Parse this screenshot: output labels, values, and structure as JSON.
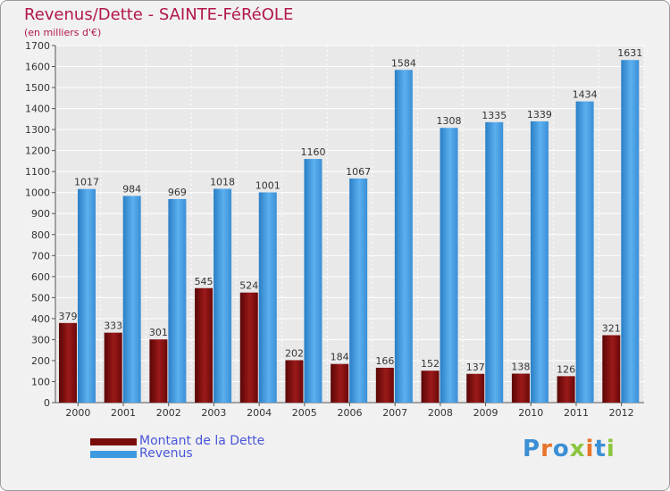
{
  "title": "Revenus/Dette - SAINTE-FéRéOLE",
  "subtitle": "(en milliers d'€)",
  "logo": {
    "text": "Proxiti",
    "colors": [
      "#3b8fd4",
      "#e8742b",
      "#3b8fd4",
      "#8cc63f",
      "#e8742b",
      "#3b8fd4",
      "#8cc63f"
    ]
  },
  "chart_data": {
    "type": "bar",
    "categories": [
      "2000",
      "2001",
      "2002",
      "2003",
      "2004",
      "2005",
      "2006",
      "2007",
      "2008",
      "2009",
      "2010",
      "2011",
      "2012"
    ],
    "series": [
      {
        "name": "Montant de la Dette",
        "color": "#7a0b0b",
        "values": [
          379,
          333,
          301,
          545,
          524,
          202,
          184,
          166,
          152,
          137,
          138,
          126,
          321
        ]
      },
      {
        "name": "Revenus",
        "color": "#3d9ae0",
        "values": [
          1017,
          984,
          969,
          1018,
          1001,
          1160,
          1067,
          1584,
          1308,
          1335,
          1339,
          1434,
          1631
        ]
      }
    ],
    "yticks": [
      0,
      100,
      200,
      300,
      400,
      500,
      600,
      700,
      800,
      900,
      1000,
      1100,
      1200,
      1300,
      1400,
      1500,
      1600,
      1700
    ],
    "ylim": [
      0,
      1700
    ],
    "grid": true,
    "legend_position": "bottom-left"
  }
}
